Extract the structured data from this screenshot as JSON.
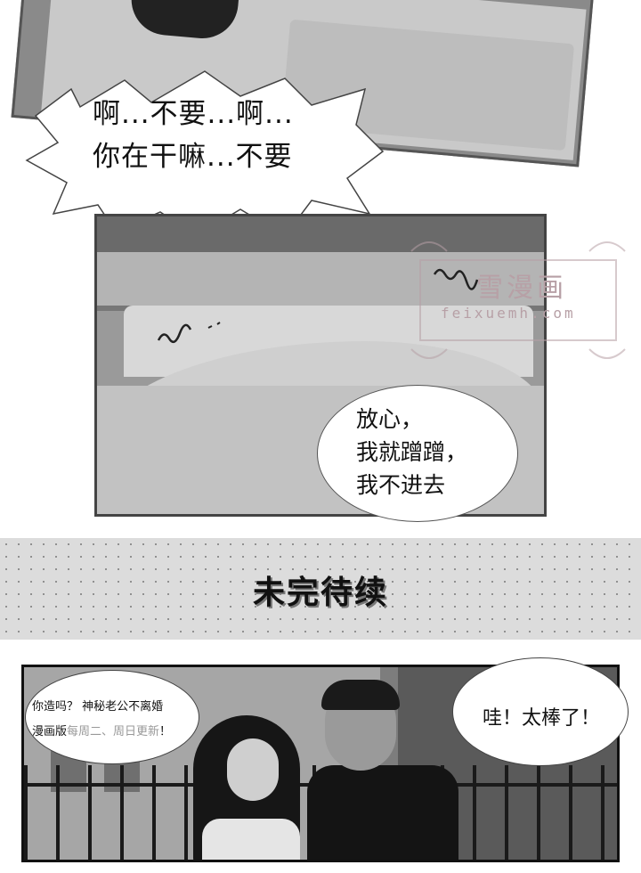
{
  "panel_top": {},
  "shout_bubble": {
    "line1": "啊...不要...啊...",
    "line2": "你在干嘛...不要"
  },
  "round_bubble": {
    "line1": "放心，",
    "line2": "我就蹭蹭，",
    "line3": "我不进去"
  },
  "watermark": {
    "title": "雪漫画",
    "url": "feixuemh.com"
  },
  "banner": {
    "text": "未完待续"
  },
  "bottom_panel": {
    "left_bubble": {
      "line1": "你造吗？ 神秘老公不离婚",
      "line2_main": "漫画版",
      "line2_schedule": "每周二、周日更新",
      "line2_end": "！"
    },
    "right_bubble": {
      "text": "哇！太棒了！"
    }
  },
  "colors": {
    "watermark": "#b7a0a6",
    "banner_bg": "#dcdcdc"
  }
}
